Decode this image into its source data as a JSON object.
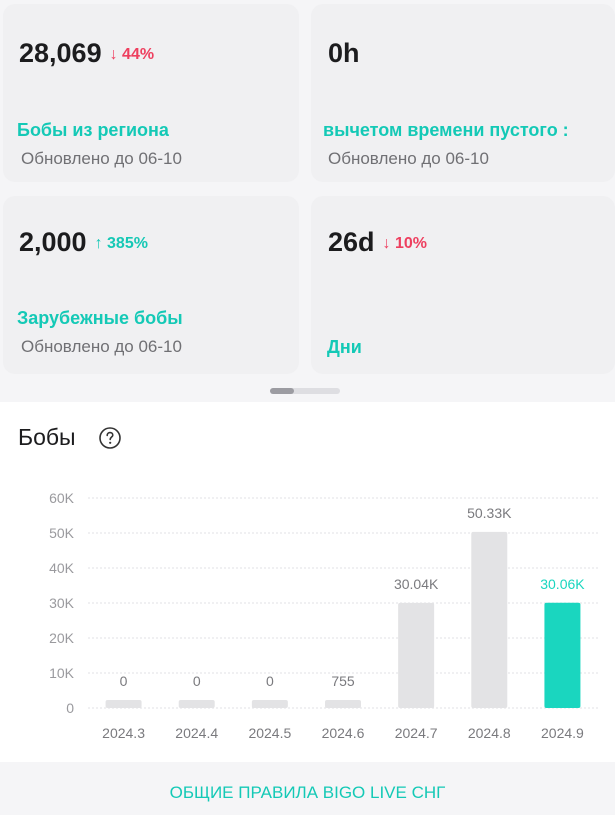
{
  "cards": [
    {
      "value": "28,069",
      "delta": "44%",
      "direction": "down",
      "label": "Бобы из региона",
      "sub": "Обновлено до 06-10"
    },
    {
      "value": "0h",
      "delta": "",
      "direction": "",
      "label": "вычетом времени пустого :",
      "sub": "Обновлено до 06-10"
    },
    {
      "value": "2,000",
      "delta": "385%",
      "direction": "up",
      "label": "Зарубежные бобы",
      "sub": "Обновлено до 06-10"
    },
    {
      "value": "26d",
      "delta": "10%",
      "direction": "down",
      "label": "Дни",
      "sub": ""
    }
  ],
  "section": {
    "title": "Бобы",
    "help_icon": "question-circle-icon"
  },
  "footer": {
    "rules_link": "ОБЩИЕ ПРАВИЛА BIGO LIVE СНГ"
  },
  "colors": {
    "accent": "#14c9b6",
    "down": "#ee3f5f",
    "bar": "#e3e3e5",
    "bar_highlight": "#1ad6bf"
  },
  "chart_data": {
    "type": "bar",
    "categories": [
      "2024.3",
      "2024.4",
      "2024.5",
      "2024.6",
      "2024.7",
      "2024.8",
      "2024.9"
    ],
    "values": [
      0,
      0,
      0,
      755,
      30040,
      50330,
      30060
    ],
    "data_labels": [
      "0",
      "0",
      "0",
      "755",
      "30.04K",
      "50.33K",
      "30.06K"
    ],
    "highlight_index": 6,
    "yticks": [
      "0",
      "10K",
      "20K",
      "30K",
      "40K",
      "50K",
      "60K"
    ],
    "ylim": [
      0,
      60000
    ],
    "grid": true,
    "title": "",
    "xlabel": "",
    "ylabel": ""
  }
}
